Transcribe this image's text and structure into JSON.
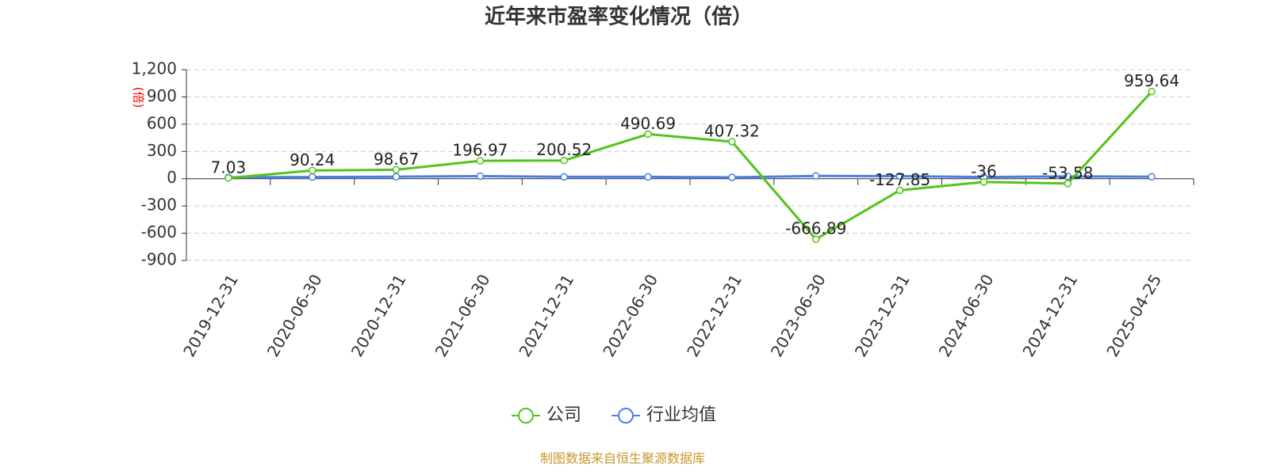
{
  "chart_data": {
    "type": "line",
    "title": "近年来市盈率变化情况（倍）",
    "y_label": "(倍)",
    "categories": [
      "2019-12-31",
      "2020-06-30",
      "2020-12-31",
      "2021-06-30",
      "2021-12-31",
      "2022-06-30",
      "2022-12-31",
      "2023-06-30",
      "2023-12-31",
      "2024-06-30",
      "2024-12-31",
      "2025-04-25"
    ],
    "series": [
      {
        "name": "公司",
        "color": "#52c41a",
        "values": [
          7.03,
          90.24,
          98.67,
          196.97,
          200.52,
          490.69,
          407.32,
          -666.89,
          -127.85,
          -36,
          -53.58,
          959.64
        ]
      },
      {
        "name": "行业均值",
        "color": "#4a7fe0",
        "values": [
          15,
          18,
          22,
          28,
          20,
          20,
          15,
          30,
          28,
          18,
          25,
          22
        ]
      }
    ],
    "ylim": [
      -900,
      1200
    ],
    "yticks": [
      -900,
      -600,
      -300,
      0,
      300,
      600,
      900,
      {
        "value": 1200,
        "label": "1,200"
      }
    ],
    "grid": true,
    "source": "制图数据来自恒生聚源数据库"
  }
}
